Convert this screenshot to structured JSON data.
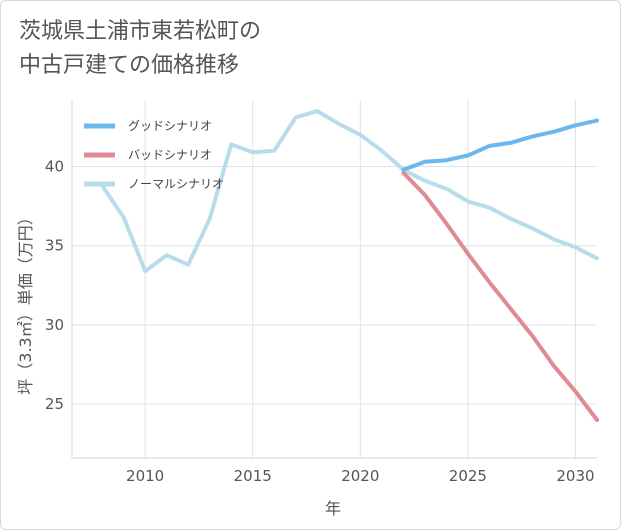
{
  "title": {
    "line1": "茨城県土浦市東若松町の",
    "line2": "中古戸建ての価格推移"
  },
  "chart_data": {
    "type": "line",
    "xlabel": "年",
    "ylabel": "坪（3.3㎡）単価（万円）",
    "xlim": [
      2006.6,
      2031
    ],
    "ylim": [
      21.6,
      44.2
    ],
    "xticks": [
      2010,
      2015,
      2020,
      2025,
      2030
    ],
    "yticks": [
      25,
      30,
      35,
      40
    ],
    "grid": true,
    "legend_position": "top-left",
    "series": [
      {
        "name": "グッドシナリオ",
        "color": "#6bb8ec",
        "x": [
          2022,
          2023,
          2024,
          2025,
          2026,
          2027,
          2028,
          2029,
          2030,
          2031
        ],
        "y": [
          39.8,
          40.3,
          40.4,
          40.7,
          41.3,
          41.5,
          41.9,
          42.2,
          42.6,
          42.9
        ]
      },
      {
        "name": "バッドシナリオ",
        "color": "#e08a93",
        "x": [
          2022,
          2023,
          2024,
          2025,
          2026,
          2027,
          2028,
          2029,
          2030,
          2031
        ],
        "y": [
          39.6,
          38.2,
          36.4,
          34.5,
          32.7,
          31.0,
          29.3,
          27.4,
          25.8,
          24.0
        ]
      },
      {
        "name": "ノーマルシナリオ",
        "color": "#b8dcea",
        "x": [
          2008,
          2009,
          2010,
          2011,
          2012,
          2013,
          2014,
          2015,
          2016,
          2017,
          2018,
          2019,
          2020,
          2021,
          2022,
          2023,
          2024,
          2025,
          2026,
          2027,
          2028,
          2029,
          2030,
          2031
        ],
        "y": [
          38.8,
          36.8,
          33.4,
          34.4,
          33.8,
          36.7,
          41.4,
          40.9,
          41.0,
          43.1,
          43.5,
          42.7,
          42.0,
          41.0,
          39.8,
          39.1,
          38.6,
          37.8,
          37.4,
          36.7,
          36.1,
          35.4,
          34.9,
          34.2
        ]
      }
    ]
  }
}
